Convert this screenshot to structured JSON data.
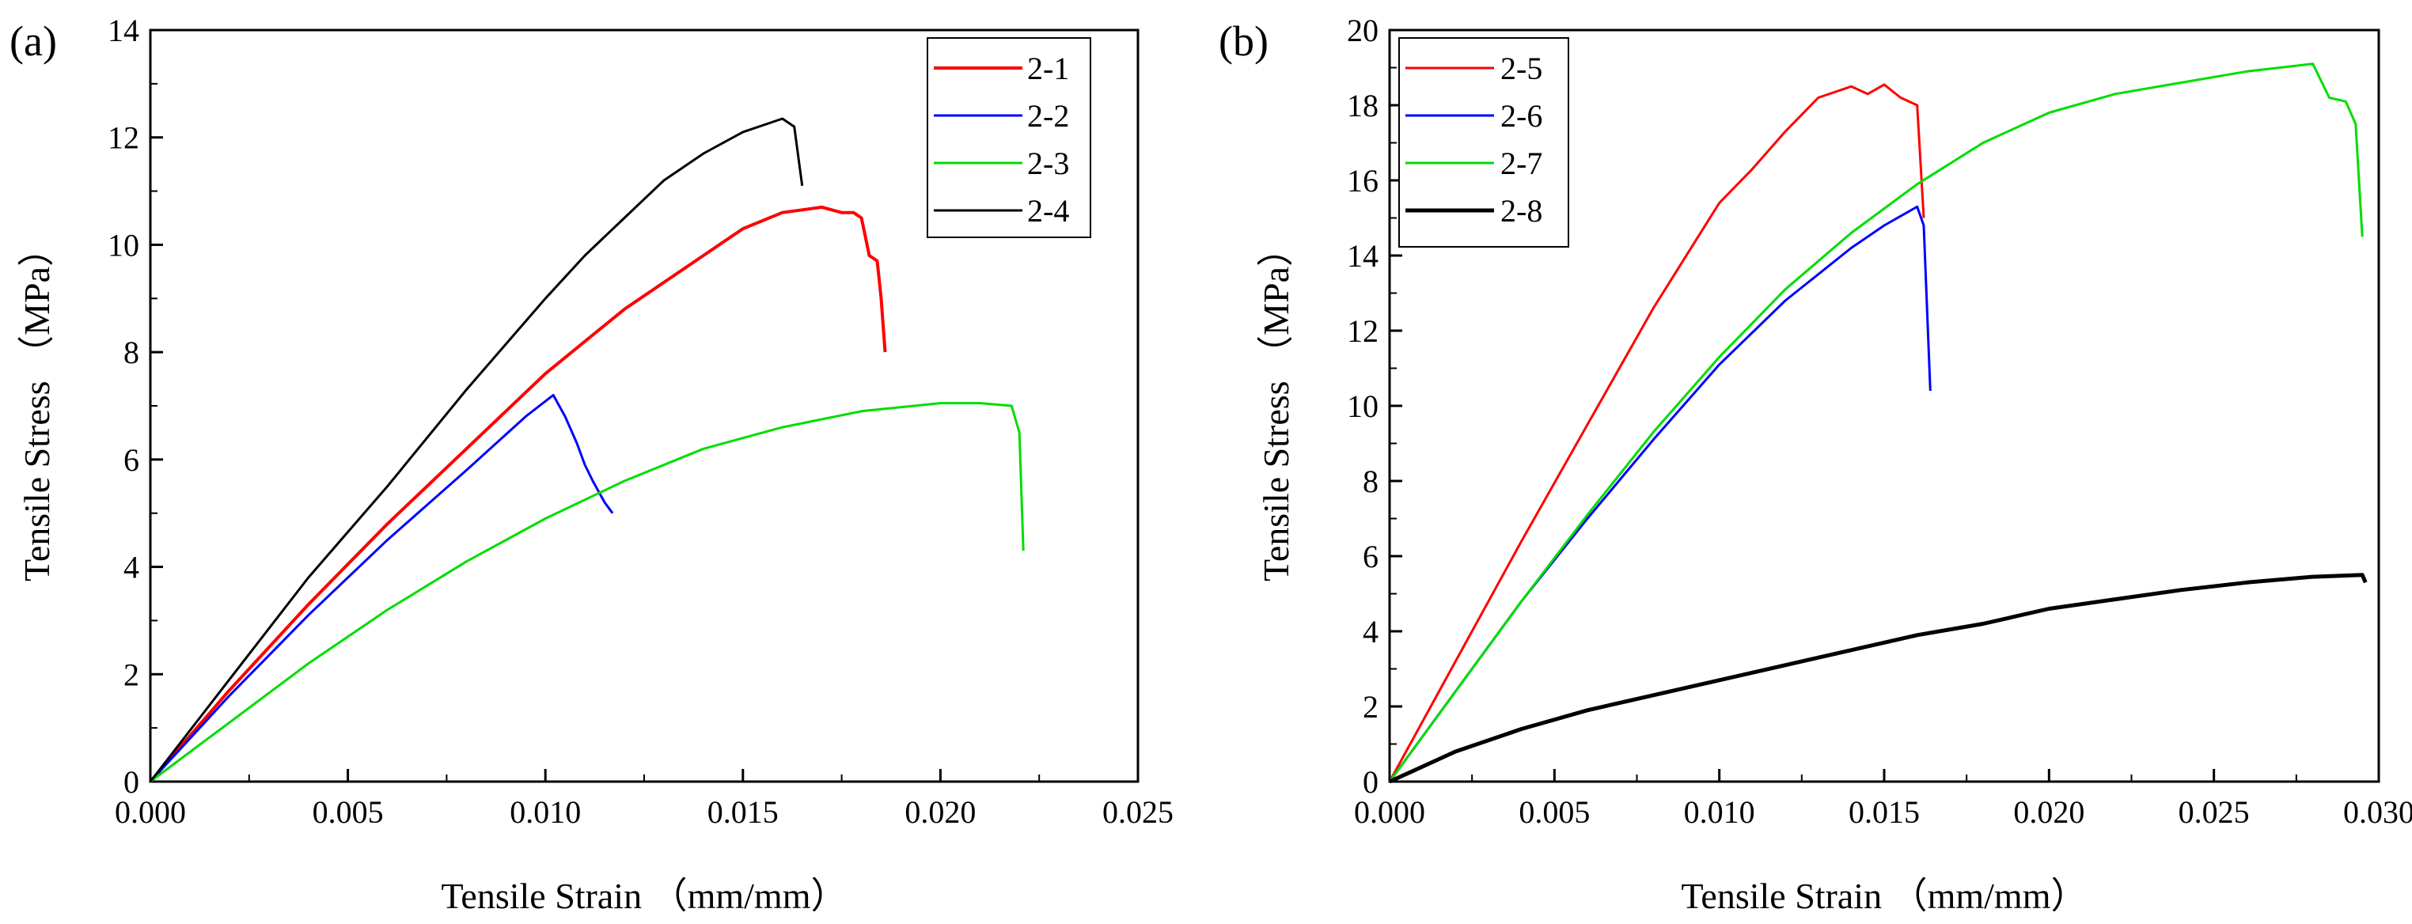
{
  "chart_data": [
    {
      "type": "line",
      "panel_label": "(a)",
      "xlabel": "Tensile Strain （mm/mm）",
      "ylabel": "Tensile Stress （MPa）",
      "xlim": [
        0,
        0.025
      ],
      "ylim": [
        0,
        14
      ],
      "xticks": [
        "0.000",
        "0.005",
        "0.010",
        "0.015",
        "0.020",
        "0.025"
      ],
      "yticks": [
        "0",
        "2",
        "4",
        "6",
        "8",
        "10",
        "12",
        "14"
      ],
      "legend_position": "top-right",
      "series": [
        {
          "name": "2-1",
          "color": "#ff0000",
          "points": [
            [
              0,
              0
            ],
            [
              0.002,
              1.7
            ],
            [
              0.004,
              3.3
            ],
            [
              0.006,
              4.8
            ],
            [
              0.008,
              6.2
            ],
            [
              0.01,
              7.6
            ],
            [
              0.012,
              8.8
            ],
            [
              0.014,
              9.8
            ],
            [
              0.015,
              10.3
            ],
            [
              0.016,
              10.6
            ],
            [
              0.017,
              10.7
            ],
            [
              0.0175,
              10.6
            ],
            [
              0.0178,
              10.6
            ],
            [
              0.018,
              10.5
            ],
            [
              0.0182,
              9.8
            ],
            [
              0.0184,
              9.7
            ],
            [
              0.0185,
              9.0
            ],
            [
              0.0186,
              8.0
            ]
          ]
        },
        {
          "name": "2-2",
          "color": "#0000ff",
          "points": [
            [
              0,
              0
            ],
            [
              0.002,
              1.6
            ],
            [
              0.004,
              3.1
            ],
            [
              0.006,
              4.5
            ],
            [
              0.008,
              5.8
            ],
            [
              0.0095,
              6.8
            ],
            [
              0.0102,
              7.2
            ],
            [
              0.0105,
              6.8
            ],
            [
              0.0108,
              6.3
            ],
            [
              0.011,
              5.9
            ],
            [
              0.0112,
              5.6
            ],
            [
              0.0115,
              5.2
            ],
            [
              0.0117,
              5.0
            ]
          ]
        },
        {
          "name": "2-3",
          "color": "#00dd00",
          "points": [
            [
              0,
              0
            ],
            [
              0.002,
              1.1
            ],
            [
              0.004,
              2.2
            ],
            [
              0.006,
              3.2
            ],
            [
              0.008,
              4.1
            ],
            [
              0.01,
              4.9
            ],
            [
              0.012,
              5.6
            ],
            [
              0.014,
              6.2
            ],
            [
              0.016,
              6.6
            ],
            [
              0.018,
              6.9
            ],
            [
              0.02,
              7.05
            ],
            [
              0.021,
              7.05
            ],
            [
              0.0218,
              7.0
            ],
            [
              0.022,
              6.5
            ],
            [
              0.0221,
              4.3
            ]
          ]
        },
        {
          "name": "2-4",
          "color": "#000000",
          "points": [
            [
              0,
              0
            ],
            [
              0.002,
              1.9
            ],
            [
              0.004,
              3.8
            ],
            [
              0.006,
              5.5
            ],
            [
              0.008,
              7.3
            ],
            [
              0.01,
              9.0
            ],
            [
              0.011,
              9.8
            ],
            [
              0.012,
              10.5
            ],
            [
              0.013,
              11.2
            ],
            [
              0.014,
              11.7
            ],
            [
              0.015,
              12.1
            ],
            [
              0.016,
              12.35
            ],
            [
              0.0163,
              12.2
            ],
            [
              0.0165,
              11.1
            ]
          ]
        }
      ]
    },
    {
      "type": "line",
      "panel_label": "(b)",
      "xlabel": "Tensile Strain （mm/mm）",
      "ylabel": "Tensile Stress （MPa）",
      "xlim": [
        0,
        0.03
      ],
      "ylim": [
        0,
        20
      ],
      "xticks": [
        "0.000",
        "0.005",
        "0.010",
        "0.015",
        "0.020",
        "0.025",
        "0.030"
      ],
      "yticks": [
        "0",
        "2",
        "4",
        "6",
        "8",
        "10",
        "12",
        "14",
        "16",
        "18",
        "20"
      ],
      "legend_position": "top-left",
      "series": [
        {
          "name": "2-5",
          "color": "#ff0000",
          "points": [
            [
              0,
              0
            ],
            [
              0.002,
              3.2
            ],
            [
              0.004,
              6.4
            ],
            [
              0.006,
              9.5
            ],
            [
              0.008,
              12.6
            ],
            [
              0.01,
              15.4
            ],
            [
              0.011,
              16.3
            ],
            [
              0.012,
              17.3
            ],
            [
              0.013,
              18.2
            ],
            [
              0.014,
              18.5
            ],
            [
              0.0145,
              18.3
            ],
            [
              0.015,
              18.55
            ],
            [
              0.0155,
              18.2
            ],
            [
              0.016,
              18.0
            ],
            [
              0.0162,
              15.0
            ]
          ]
        },
        {
          "name": "2-6",
          "color": "#0000ff",
          "points": [
            [
              0,
              0
            ],
            [
              0.002,
              2.4
            ],
            [
              0.004,
              4.8
            ],
            [
              0.006,
              7.0
            ],
            [
              0.008,
              9.1
            ],
            [
              0.01,
              11.1
            ],
            [
              0.012,
              12.8
            ],
            [
              0.014,
              14.2
            ],
            [
              0.015,
              14.8
            ],
            [
              0.016,
              15.3
            ],
            [
              0.0162,
              14.8
            ],
            [
              0.0164,
              10.4
            ]
          ]
        },
        {
          "name": "2-7",
          "color": "#00dd00",
          "points": [
            [
              0,
              0
            ],
            [
              0.002,
              2.4
            ],
            [
              0.004,
              4.8
            ],
            [
              0.006,
              7.1
            ],
            [
              0.008,
              9.3
            ],
            [
              0.01,
              11.3
            ],
            [
              0.012,
              13.1
            ],
            [
              0.014,
              14.6
            ],
            [
              0.016,
              15.9
            ],
            [
              0.018,
              17.0
            ],
            [
              0.02,
              17.8
            ],
            [
              0.022,
              18.3
            ],
            [
              0.024,
              18.6
            ],
            [
              0.026,
              18.9
            ],
            [
              0.027,
              19.0
            ],
            [
              0.028,
              19.1
            ],
            [
              0.0285,
              18.2
            ],
            [
              0.029,
              18.1
            ],
            [
              0.0293,
              17.5
            ],
            [
              0.0295,
              14.5
            ]
          ]
        },
        {
          "name": "2-8",
          "color": "#000000",
          "points": [
            [
              0,
              0
            ],
            [
              0.002,
              0.8
            ],
            [
              0.004,
              1.4
            ],
            [
              0.006,
              1.9
            ],
            [
              0.008,
              2.3
            ],
            [
              0.01,
              2.7
            ],
            [
              0.012,
              3.1
            ],
            [
              0.014,
              3.5
            ],
            [
              0.016,
              3.9
            ],
            [
              0.018,
              4.2
            ],
            [
              0.02,
              4.6
            ],
            [
              0.022,
              4.85
            ],
            [
              0.024,
              5.1
            ],
            [
              0.026,
              5.3
            ],
            [
              0.028,
              5.45
            ],
            [
              0.0295,
              5.5
            ],
            [
              0.0296,
              5.3
            ]
          ]
        }
      ]
    }
  ]
}
